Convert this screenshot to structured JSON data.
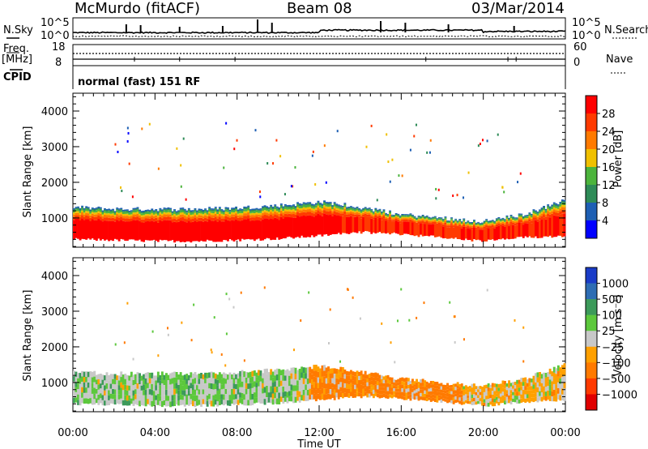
{
  "header": {
    "station": "McMurdo (fitACF)",
    "beam": "Beam 08",
    "date": "03/Mar/2014"
  },
  "top_panel": {
    "left_label": "N.Sky",
    "right_label": "N.Search",
    "ytick_top": "10^5",
    "ytick_bottom": "10^0",
    "right_ytick_top": "10^5",
    "right_ytick_bottom": "10^0"
  },
  "freq_panel": {
    "left_label_line1": "Freq.",
    "left_label_line2": "[MHz]",
    "right_label": "Nave",
    "left_ytick_top": "18",
    "left_ytick_bottom": "8",
    "right_ytick_top": "60",
    "right_ytick_bottom": "0"
  },
  "cpid_panel": {
    "left_label": "CPID",
    "mode": "normal (fast) 151 RF"
  },
  "power_panel": {
    "ylabel": "Slant Range [km]",
    "colorbar_label": "Power [dB]",
    "colorbar_ticks": [
      "28",
      "24",
      "20",
      "16",
      "12",
      "8",
      "4"
    ],
    "colorbar_colors": [
      "#ff0000",
      "#ff3a00",
      "#ff7a00",
      "#f0c000",
      "#4cb43c",
      "#2e8b57",
      "#1e5fb4",
      "#0000ff"
    ]
  },
  "velocity_panel": {
    "ylabel": "Slant Range [km]",
    "colorbar_label": "Velocity [m s⁻¹]",
    "colorbar_ticks": [
      "1000",
      "500",
      "100",
      "25",
      "−25",
      "−100",
      "−500",
      "−1000"
    ],
    "colorbar_colors": [
      "#1a3cc8",
      "#2e6db4",
      "#3c9a5a",
      "#5cc83c",
      "#c8c8c8",
      "#ffa000",
      "#ff7a00",
      "#ff3a00",
      "#e00000"
    ]
  },
  "xaxis": {
    "label": "Time UT",
    "ticks": [
      "00:00",
      "04:00",
      "08:00",
      "12:00",
      "16:00",
      "20:00",
      "00:00"
    ]
  },
  "chart_data": [
    {
      "type": "heatmap",
      "title": "McMurdo (fitACF) Beam 08 03/Mar/2014",
      "xlabel": "Time UT",
      "ylabel": "Slant Range [km]",
      "colorbar_label": "Power [dB]",
      "x_ticks": [
        "00:00",
        "04:00",
        "08:00",
        "12:00",
        "16:00",
        "20:00",
        "00:00"
      ],
      "y_ticks": [
        1000,
        2000,
        3000,
        4000
      ],
      "ylim": [
        180,
        4500
      ],
      "xlim_hours": [
        0,
        24
      ],
      "colorbar_range": [
        0,
        32
      ],
      "echo_band": [
        {
          "t": 0,
          "lo": 400,
          "hi": 1300
        },
        {
          "t": 2,
          "lo": 380,
          "hi": 1250
        },
        {
          "t": 4,
          "lo": 350,
          "hi": 1250
        },
        {
          "t": 6,
          "lo": 350,
          "hi": 1250
        },
        {
          "t": 8,
          "lo": 380,
          "hi": 1280
        },
        {
          "t": 10,
          "lo": 420,
          "hi": 1350
        },
        {
          "t": 12,
          "lo": 500,
          "hi": 1450
        },
        {
          "t": 13,
          "lo": 550,
          "hi": 1400
        },
        {
          "t": 14,
          "lo": 600,
          "hi": 1300
        },
        {
          "t": 16,
          "lo": 550,
          "hi": 1100
        },
        {
          "t": 18,
          "lo": 450,
          "hi": 1000
        },
        {
          "t": 20,
          "lo": 350,
          "hi": 900
        },
        {
          "t": 22,
          "lo": 450,
          "hi": 1100
        },
        {
          "t": 24,
          "lo": 500,
          "hi": 1500
        }
      ]
    },
    {
      "type": "heatmap",
      "title": "McMurdo (fitACF) Beam 08 03/Mar/2014",
      "xlabel": "Time UT",
      "ylabel": "Slant Range [km]",
      "colorbar_label": "Velocity [m s⁻¹]",
      "x_ticks": [
        "00:00",
        "04:00",
        "08:00",
        "12:00",
        "16:00",
        "20:00",
        "00:00"
      ],
      "y_ticks": [
        1000,
        2000,
        3000,
        4000
      ],
      "ylim": [
        180,
        4500
      ],
      "xlim_hours": [
        0,
        24
      ],
      "colorbar_levels": [
        1000,
        500,
        100,
        25,
        -25,
        -100,
        -500,
        -1000
      ],
      "velocity_segments": [
        {
          "t0": 0,
          "t1": 11.5,
          "dominant": "25 to -25 / 100 to 500"
        },
        {
          "t0": 11.5,
          "t1": 19,
          "dominant": "-100 to -500"
        },
        {
          "t0": 19,
          "t1": 24,
          "dominant": "-25 to -100"
        }
      ]
    }
  ]
}
